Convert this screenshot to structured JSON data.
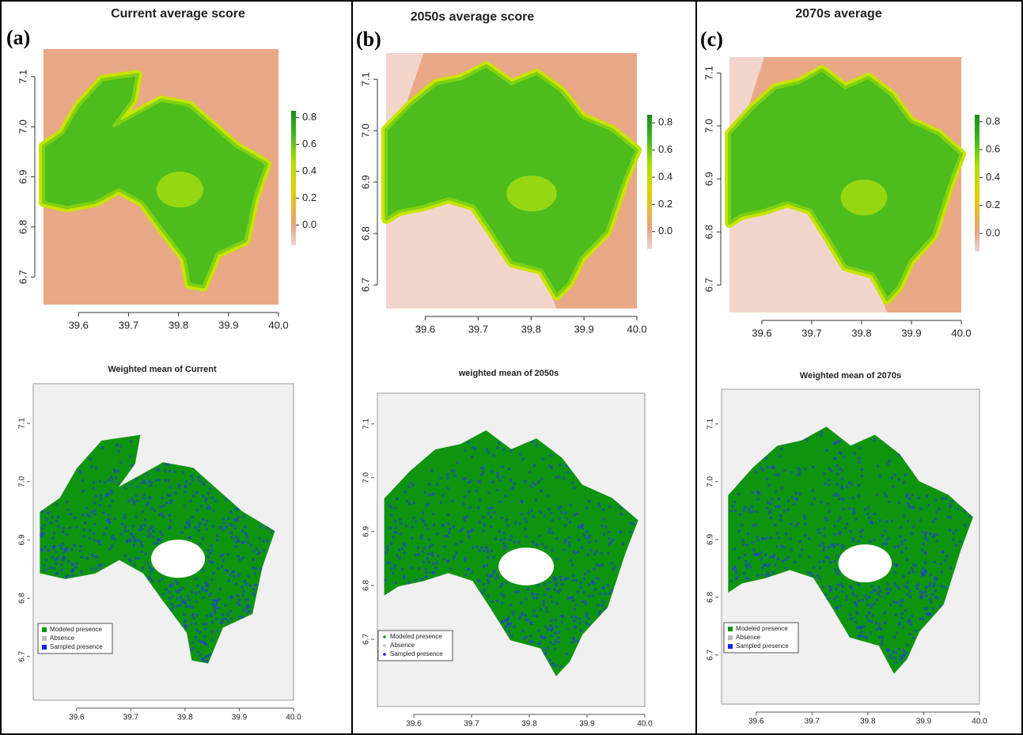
{
  "top": [
    {
      "label": "(a)",
      "title": "Current average score",
      "xlim": [
        39.53,
        40.0
      ],
      "ylim": [
        6.645,
        7.155
      ],
      "xticks": [
        39.6,
        39.7,
        39.8,
        39.9,
        {
          "value": 40,
          "label": "40.0"
        }
      ],
      "yticks": [
        6.7,
        6.8,
        6.9,
        {
          "value": 7,
          "label": "7.0"
        },
        7.1
      ],
      "colorbar": {
        "lim": [
          -0.15,
          0.85
        ],
        "ticks": [
          {
            "value": 0,
            "label": "0.0"
          },
          0.2,
          0.4,
          0.6,
          0.8
        ]
      }
    },
    {
      "label": "(b)",
      "title": "2050s average score",
      "xlim": [
        39.526,
        40.0
      ],
      "ylim": [
        6.654,
        7.151
      ],
      "xticks": [
        39.6,
        39.7,
        39.8,
        39.9,
        {
          "value": 40,
          "label": "40.0"
        }
      ],
      "yticks": [
        6.7,
        6.8,
        6.9,
        {
          "value": 7,
          "label": "7.0"
        },
        7.1
      ],
      "colorbar": {
        "lim": [
          -0.13,
          0.86
        ],
        "ticks": [
          {
            "value": 0,
            "label": "0.0"
          },
          0.2,
          0.4,
          0.6,
          0.8
        ]
      }
    },
    {
      "label": "(c)",
      "title": "2070s average",
      "xlim": [
        39.535,
        40.0
      ],
      "ylim": [
        6.648,
        7.13
      ],
      "xticks": [
        39.6,
        39.7,
        39.8,
        39.9,
        {
          "value": 40,
          "label": "40.0"
        }
      ],
      "yticks": [
        6.7,
        6.8,
        6.9,
        {
          "value": 7,
          "label": "7.0"
        },
        7.1
      ],
      "colorbar": {
        "lim": [
          -0.13,
          0.85
        ],
        "ticks": [
          {
            "value": 0,
            "label": "0.0"
          },
          0.2,
          0.4,
          0.6,
          0.8
        ]
      }
    }
  ],
  "bottom": [
    {
      "title": "Weighted mean of Current",
      "xlim": [
        39.52,
        40.0
      ],
      "ylim": [
        6.625,
        7.168
      ],
      "xticks": [
        39.6,
        39.7,
        39.8,
        39.9,
        {
          "value": 40,
          "label": "40.0"
        }
      ],
      "yticks": [
        6.7,
        6.8,
        6.9,
        {
          "value": 7,
          "label": "7.0"
        },
        7.1
      ],
      "legend": [
        "Modeled presence",
        "Absence",
        "Sampled presence"
      ]
    },
    {
      "title": "weighted mean of 2050s",
      "xlim": [
        39.537,
        40.0
      ],
      "ylim": [
        6.575,
        7.157
      ],
      "xticks": [
        39.6,
        39.7,
        39.8,
        39.9,
        {
          "value": 40,
          "label": "40.0"
        }
      ],
      "yticks": [
        6.7,
        6.8,
        6.9,
        {
          "value": 7,
          "label": "7.0"
        },
        7.1
      ],
      "legend": [
        "Modeled presence",
        "Absence",
        "Sampled presence"
      ]
    },
    {
      "title": "Weighted mean of 2070s",
      "xlim": [
        39.538,
        40.0
      ],
      "ylim": [
        6.615,
        7.16
      ],
      "xticks": [
        39.6,
        39.7,
        39.8,
        39.9,
        {
          "value": 40,
          "label": "40.0"
        }
      ],
      "yticks": [
        6.7,
        6.8,
        6.9,
        {
          "value": 7,
          "label": "7.0"
        },
        7.1
      ],
      "legend": [
        "Modeled presence",
        "Absence",
        "Sampled presence"
      ]
    }
  ]
}
